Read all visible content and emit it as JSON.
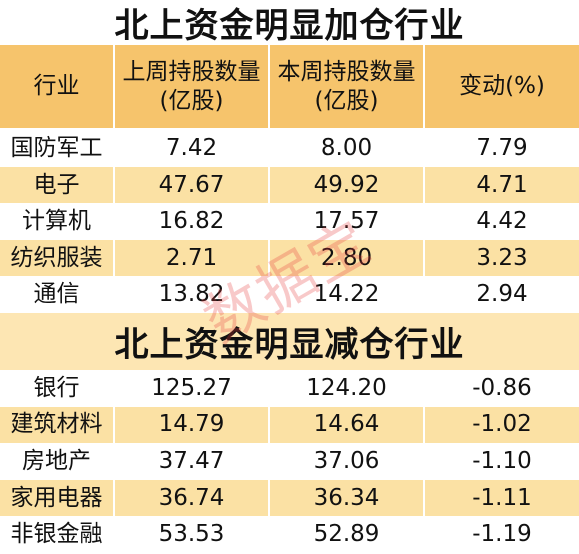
{
  "header": [
    "行业",
    "上周持股数量(亿股)",
    "本周持股数量(亿股)",
    "变动(%)"
  ],
  "sections": [
    {
      "title": "北上资金明显加仓行业",
      "rows": [
        [
          "国防军工",
          "7.42",
          "8.00",
          "7.79"
        ],
        [
          "电子",
          "47.67",
          "49.92",
          "4.71"
        ],
        [
          "计算机",
          "16.82",
          "17.57",
          "4.42"
        ],
        [
          "纺织服装",
          "2.71",
          "2.80",
          "3.23"
        ],
        [
          "通信",
          "13.82",
          "14.22",
          "2.94"
        ]
      ]
    },
    {
      "title": "北上资金明显减仓行业",
      "rows": [
        [
          "银行",
          "125.27",
          "124.20",
          "-0.86"
        ],
        [
          "建筑材料",
          "14.79",
          "14.64",
          "-1.02"
        ],
        [
          "房地产",
          "37.47",
          "37.06",
          "-1.10"
        ],
        [
          "家用电器",
          "36.74",
          "36.34",
          "-1.11"
        ],
        [
          "非银金融",
          "53.53",
          "52.89",
          "-1.19"
        ]
      ]
    }
  ],
  "watermark": "数据宝"
}
